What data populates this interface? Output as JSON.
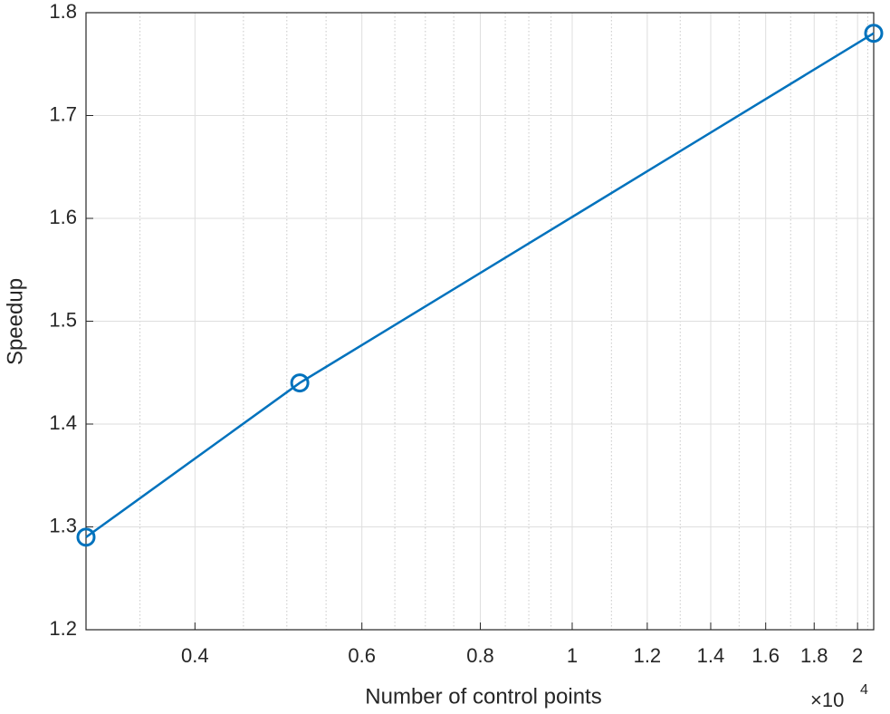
{
  "chart_data": {
    "type": "line",
    "xlabel": "Number of control points",
    "ylabel": "Speedup",
    "x_multiplier": "×10",
    "x_multiplier_exponent": "4",
    "xscale": "log",
    "x": [
      0.307,
      0.516,
      2.08
    ],
    "series": [
      {
        "name": "Speedup",
        "color": "#0072bd",
        "marker": "circle",
        "values": [
          1.29,
          1.44,
          1.78
        ]
      }
    ],
    "xlim": [
      0.307,
      2.08
    ],
    "ylim": [
      1.2,
      1.8
    ],
    "xticks": [
      0.4,
      0.6,
      0.8,
      1,
      1.2,
      1.4,
      1.6,
      1.8,
      2
    ],
    "xminorticks": [
      0.35,
      0.45,
      0.5,
      0.55,
      0.65,
      0.7,
      0.75,
      0.85,
      0.9,
      0.95,
      1.1,
      1.3,
      1.5,
      1.7,
      1.9,
      2.05
    ],
    "yticks": [
      1.2,
      1.3,
      1.4,
      1.5,
      1.6,
      1.7,
      1.8
    ],
    "grid": true
  }
}
